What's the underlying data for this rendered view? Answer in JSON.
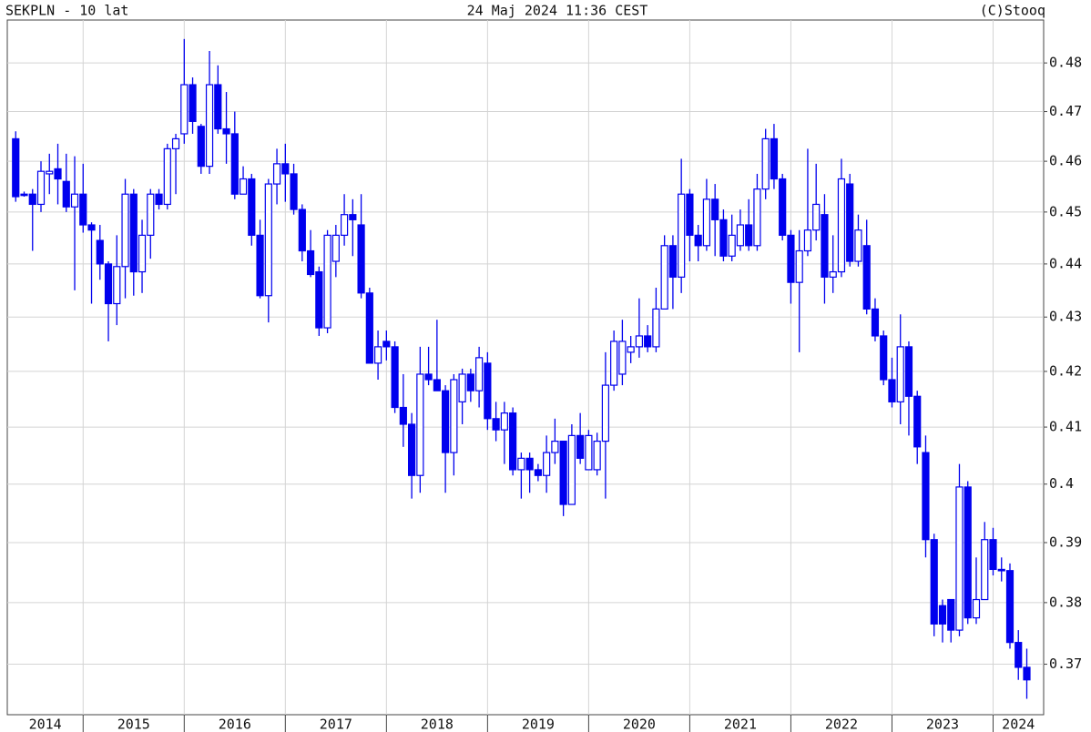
{
  "chart_data": {
    "type": "candlestick",
    "title": "SEKPLN - 10 lat",
    "subtitle": "24 Maj 2024 11:36 CEST",
    "source": "(C)Stooq",
    "color": "#0000ee",
    "log_y": true,
    "grid": true,
    "ylim": [
      0.362,
      0.489
    ],
    "yticks": [
      0.37,
      0.38,
      0.39,
      0.4,
      0.41,
      0.42,
      0.43,
      0.44,
      0.45,
      0.46,
      0.47,
      0.48
    ],
    "xlim": [
      -1,
      122
    ],
    "xgrid": [
      8,
      20,
      32,
      44,
      56,
      68,
      80,
      92,
      104,
      116
    ],
    "xticks": [
      {
        "value": 3.5,
        "label": "2014"
      },
      {
        "value": 14,
        "label": "2015"
      },
      {
        "value": 26,
        "label": "2016"
      },
      {
        "value": 38,
        "label": "2017"
      },
      {
        "value": 50,
        "label": "2018"
      },
      {
        "value": 62,
        "label": "2019"
      },
      {
        "value": 74,
        "label": "2020"
      },
      {
        "value": 86,
        "label": "2021"
      },
      {
        "value": 98,
        "label": "2022"
      },
      {
        "value": 110,
        "label": "2023"
      },
      {
        "value": 119,
        "label": "2024"
      }
    ],
    "open": [
      0.4645,
      0.4535,
      0.4535,
      0.4515,
      0.4575,
      0.4585,
      0.456,
      0.451,
      0.4535,
      0.4475,
      0.4445,
      0.44,
      0.4325,
      0.4395,
      0.4535,
      0.4385,
      0.4455,
      0.4535,
      0.4515,
      0.4625,
      0.4655,
      0.4755,
      0.467,
      0.459,
      0.4755,
      0.4665,
      0.4655,
      0.4535,
      0.4565,
      0.4455,
      0.434,
      0.4555,
      0.4595,
      0.4575,
      0.4505,
      0.4425,
      0.4385,
      0.428,
      0.4405,
      0.4455,
      0.4495,
      0.4475,
      0.4345,
      0.4215,
      0.4255,
      0.4245,
      0.4135,
      0.4105,
      0.4015,
      0.4195,
      0.4185,
      0.4165,
      0.4055,
      0.4145,
      0.4195,
      0.4165,
      0.4215,
      0.4115,
      0.4095,
      0.4125,
      0.4025,
      0.4045,
      0.4025,
      0.4015,
      0.4055,
      0.4075,
      0.3965,
      0.4085,
      0.4025,
      0.4025,
      0.4075,
      0.4175,
      0.4195,
      0.4235,
      0.4245,
      0.4265,
      0.4245,
      0.4315,
      0.4435,
      0.4375,
      0.4535,
      0.4455,
      0.4435,
      0.4525,
      0.4485,
      0.4415,
      0.4435,
      0.4475,
      0.4435,
      0.4545,
      0.4645,
      0.4565,
      0.4455,
      0.4365,
      0.4425,
      0.4465,
      0.4495,
      0.4375,
      0.4385,
      0.4555,
      0.4405,
      0.4435,
      0.4315,
      0.4265,
      0.4185,
      0.4145,
      0.4245,
      0.4155,
      0.4055,
      0.3905,
      0.3795,
      0.3805,
      0.3755,
      0.3995,
      0.3775,
      0.3805,
      0.3905,
      0.3855,
      0.3853,
      0.3735,
      0.3695
    ],
    "high": [
      0.466,
      0.454,
      0.4545,
      0.46,
      0.4615,
      0.4635,
      0.4615,
      0.461,
      0.4595,
      0.448,
      0.4475,
      0.4405,
      0.4455,
      0.4565,
      0.4545,
      0.4485,
      0.4545,
      0.4545,
      0.4635,
      0.4655,
      0.485,
      0.477,
      0.4675,
      0.4825,
      0.4795,
      0.474,
      0.47,
      0.459,
      0.4575,
      0.4485,
      0.4565,
      0.4625,
      0.4635,
      0.4595,
      0.4515,
      0.4465,
      0.4395,
      0.4465,
      0.4475,
      0.4535,
      0.4525,
      0.4535,
      0.4355,
      0.4275,
      0.4275,
      0.4255,
      0.4195,
      0.4125,
      0.4245,
      0.4245,
      0.4295,
      0.4175,
      0.4195,
      0.4205,
      0.4205,
      0.4245,
      0.4235,
      0.4145,
      0.4145,
      0.4135,
      0.4055,
      0.4055,
      0.4035,
      0.4085,
      0.4115,
      0.4075,
      0.4105,
      0.4125,
      0.4095,
      0.409,
      0.4235,
      0.4275,
      0.4295,
      0.4265,
      0.4335,
      0.4285,
      0.4355,
      0.4455,
      0.4455,
      0.4605,
      0.4545,
      0.4475,
      0.4565,
      0.4555,
      0.4505,
      0.4495,
      0.4505,
      0.4525,
      0.4575,
      0.4665,
      0.4675,
      0.4575,
      0.4465,
      0.4465,
      0.4625,
      0.4595,
      0.4535,
      0.4455,
      0.4605,
      0.4575,
      0.4495,
      0.4485,
      0.4335,
      0.4275,
      0.4225,
      0.4305,
      0.4255,
      0.4165,
      0.4085,
      0.3915,
      0.3805,
      0.3805,
      0.4035,
      0.4005,
      0.3875,
      0.3935,
      0.3925,
      0.3875,
      0.3865,
      0.3755,
      0.3725
    ],
    "low": [
      0.452,
      0.453,
      0.4425,
      0.45,
      0.4535,
      0.4515,
      0.45,
      0.435,
      0.446,
      0.4325,
      0.437,
      0.4255,
      0.4285,
      0.4335,
      0.434,
      0.4345,
      0.441,
      0.4505,
      0.4505,
      0.4535,
      0.4635,
      0.4655,
      0.4575,
      0.4575,
      0.4655,
      0.4595,
      0.4525,
      0.4535,
      0.4435,
      0.4335,
      0.429,
      0.4515,
      0.452,
      0.4495,
      0.4405,
      0.4375,
      0.4265,
      0.427,
      0.4375,
      0.4435,
      0.4415,
      0.4335,
      0.4215,
      0.4185,
      0.422,
      0.4125,
      0.4065,
      0.3975,
      0.3985,
      0.4175,
      0.4165,
      0.3985,
      0.4015,
      0.4105,
      0.4145,
      0.4135,
      0.4095,
      0.4075,
      0.4035,
      0.4015,
      0.3975,
      0.3985,
      0.4005,
      0.3985,
      0.4035,
      0.3945,
      0.3965,
      0.4035,
      0.4025,
      0.4015,
      0.3975,
      0.4165,
      0.4175,
      0.4215,
      0.4225,
      0.4235,
      0.4235,
      0.4315,
      0.4315,
      0.4345,
      0.4405,
      0.4405,
      0.4425,
      0.4415,
      0.4405,
      0.4405,
      0.4425,
      0.4425,
      0.4425,
      0.4525,
      0.4545,
      0.4445,
      0.4325,
      0.4235,
      0.4415,
      0.4445,
      0.4325,
      0.4345,
      0.4375,
      0.4395,
      0.4395,
      0.4305,
      0.4255,
      0.4175,
      0.4135,
      0.4105,
      0.4085,
      0.4035,
      0.3875,
      0.3745,
      0.3735,
      0.3735,
      0.3745,
      0.3765,
      0.3765,
      0.3805,
      0.3845,
      0.3835,
      0.3725,
      0.3675,
      0.3645
    ],
    "close": [
      0.453,
      0.4533,
      0.4515,
      0.458,
      0.458,
      0.4565,
      0.451,
      0.4535,
      0.4475,
      0.4465,
      0.44,
      0.4325,
      0.4395,
      0.4535,
      0.4385,
      0.4455,
      0.4535,
      0.4515,
      0.4625,
      0.4645,
      0.4755,
      0.468,
      0.459,
      0.4755,
      0.4665,
      0.4655,
      0.4535,
      0.4565,
      0.4455,
      0.434,
      0.4555,
      0.4595,
      0.4575,
      0.4505,
      0.4425,
      0.438,
      0.428,
      0.4455,
      0.4455,
      0.4495,
      0.4485,
      0.4345,
      0.4215,
      0.4245,
      0.4245,
      0.4135,
      0.4105,
      0.4015,
      0.4195,
      0.4185,
      0.4165,
      0.4055,
      0.4185,
      0.4195,
      0.4165,
      0.4225,
      0.4115,
      0.4095,
      0.4125,
      0.4025,
      0.4045,
      0.4025,
      0.4015,
      0.4055,
      0.4075,
      0.3965,
      0.4085,
      0.4045,
      0.4085,
      0.4075,
      0.4175,
      0.4255,
      0.4255,
      0.4245,
      0.4265,
      0.4245,
      0.4315,
      0.4435,
      0.4375,
      0.4535,
      0.4455,
      0.4435,
      0.4525,
      0.4485,
      0.4415,
      0.4455,
      0.4475,
      0.4435,
      0.4545,
      0.4645,
      0.4565,
      0.4455,
      0.4365,
      0.4425,
      0.4465,
      0.4515,
      0.4375,
      0.4385,
      0.4565,
      0.4405,
      0.4465,
      0.4315,
      0.4265,
      0.4185,
      0.4145,
      0.4245,
      0.4155,
      0.4065,
      0.3905,
      0.3765,
      0.3765,
      0.3755,
      0.3995,
      0.3775,
      0.3805,
      0.3905,
      0.3855,
      0.3853,
      0.3735,
      0.3695,
      0.3675
    ]
  }
}
